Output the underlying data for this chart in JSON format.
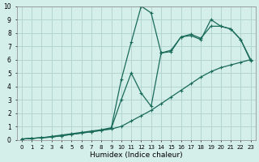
{
  "xlabel": "Humidex (Indice chaleur)",
  "xlim": [
    -0.5,
    23.5
  ],
  "ylim": [
    0,
    10
  ],
  "xticks": [
    0,
    1,
    2,
    3,
    4,
    5,
    6,
    7,
    8,
    9,
    10,
    11,
    12,
    13,
    14,
    15,
    16,
    17,
    18,
    19,
    20,
    21,
    22,
    23
  ],
  "yticks": [
    0,
    1,
    2,
    3,
    4,
    5,
    6,
    7,
    8,
    9,
    10
  ],
  "background_color": "#d4eeea",
  "grid_color": "#b5d5d0",
  "line_color": "#1a6b5a",
  "line1_x": [
    0,
    1,
    2,
    3,
    4,
    5,
    6,
    7,
    8,
    9,
    10,
    11,
    12,
    13,
    14,
    15,
    16,
    17,
    18,
    19,
    20,
    21,
    22,
    23
  ],
  "line1_y": [
    0.05,
    0.1,
    0.15,
    0.2,
    0.3,
    0.4,
    0.5,
    0.6,
    0.7,
    0.8,
    1.0,
    1.4,
    1.8,
    2.2,
    2.7,
    3.2,
    3.7,
    4.2,
    4.7,
    5.1,
    5.4,
    5.6,
    5.8,
    6.0
  ],
  "line2_x": [
    0,
    1,
    2,
    3,
    4,
    5,
    6,
    7,
    8,
    9,
    10,
    11,
    12,
    13,
    14,
    15,
    16,
    17,
    18,
    19,
    20,
    21,
    22,
    23
  ],
  "line2_y": [
    0.05,
    0.1,
    0.15,
    0.25,
    0.35,
    0.45,
    0.55,
    0.65,
    0.75,
    0.9,
    4.5,
    7.3,
    10.0,
    9.5,
    6.5,
    6.6,
    7.7,
    7.8,
    7.5,
    9.0,
    8.5,
    8.3,
    7.5,
    6.0
  ],
  "line3_x": [
    0,
    1,
    2,
    3,
    4,
    5,
    6,
    7,
    8,
    9,
    10,
    11,
    12,
    13,
    14,
    15,
    16,
    17,
    18,
    19,
    20,
    21,
    22,
    23
  ],
  "line3_y": [
    0.05,
    0.1,
    0.15,
    0.2,
    0.3,
    0.4,
    0.5,
    0.6,
    0.7,
    0.85,
    3.0,
    5.0,
    3.5,
    2.5,
    6.5,
    6.7,
    7.7,
    7.9,
    7.6,
    8.5,
    8.5,
    8.3,
    7.5,
    5.9
  ]
}
